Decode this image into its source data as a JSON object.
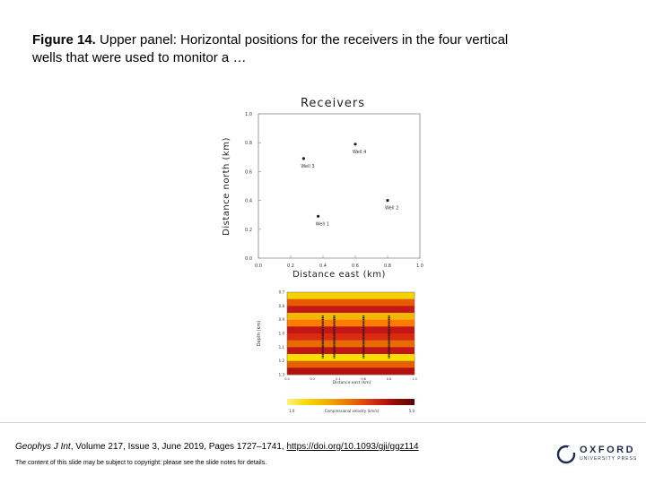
{
  "caption": {
    "label": "Figure 14.",
    "text": " Upper panel: Horizontal positions for the receivers in the four vertical wells that were used to monitor a …"
  },
  "citation": {
    "journal": "Geophys J Int",
    "details": ", Volume 217, Issue 3, June 2019, Pages 1727–1741, ",
    "link": "https://doi.org/10.1093/gji/ggz114"
  },
  "notice": "The content of this slide may be subject to copyright: please see the slide notes for details.",
  "publisher": {
    "name": "OXFORD",
    "sub": "UNIVERSITY PRESS"
  },
  "chart_data": [
    {
      "type": "scatter",
      "title": "Receivers",
      "xlabel": "Distance east (km)",
      "ylabel": "Distance north (km)",
      "xlim": [
        0.0,
        1.0
      ],
      "ylim": [
        0.0,
        1.0
      ],
      "xticks": [
        "0.0",
        "0.2",
        "0.4",
        "0.6",
        "0.8",
        "1.0"
      ],
      "yticks": [
        "0.0",
        "0.2",
        "0.4",
        "0.6",
        "0.8",
        "1.0"
      ],
      "points": [
        {
          "label": "Well 1",
          "x": 0.37,
          "y": 0.29
        },
        {
          "label": "Well 2",
          "x": 0.8,
          "y": 0.4
        },
        {
          "label": "Well 3",
          "x": 0.28,
          "y": 0.69
        },
        {
          "label": "Well 4",
          "x": 0.6,
          "y": 0.79
        }
      ]
    },
    {
      "type": "heatmap",
      "xlabel": "Distance east (km)",
      "ylabel": "Depth (km)",
      "yticks": [
        "0.7",
        "0.8",
        "0.9",
        "1.0",
        "1.1",
        "1.2",
        "1.3"
      ],
      "xticks": [
        "0.0",
        "0.2",
        "0.4",
        "0.6",
        "0.8",
        "1.0"
      ],
      "ylim": [
        0.7,
        1.3
      ],
      "xlim": [
        0.0,
        1.0
      ],
      "layer_colors": [
        "#f4d200",
        "#e65a00",
        "#c41818",
        "#f2b800",
        "#ff7a00",
        "#c31515",
        "#d82b10",
        "#e86b00",
        "#c21515",
        "#f7e000",
        "#e46000",
        "#b51010"
      ],
      "wells": [
        {
          "x": 0.28,
          "depth_top": 0.87,
          "depth_bottom": 1.18
        },
        {
          "x": 0.37,
          "depth_top": 0.87,
          "depth_bottom": 1.18
        },
        {
          "x": 0.6,
          "depth_top": 0.87,
          "depth_bottom": 1.18
        },
        {
          "x": 0.8,
          "depth_top": 0.87,
          "depth_bottom": 1.18
        }
      ]
    }
  ],
  "colorbar": {
    "colors": [
      "#fff27a",
      "#f7d600",
      "#f2a800",
      "#eb6e00",
      "#d83010",
      "#a00808",
      "#5a0505"
    ],
    "min_label": "1.0",
    "max_label": "5.0",
    "label": "Compressional velocity (km/s)"
  }
}
